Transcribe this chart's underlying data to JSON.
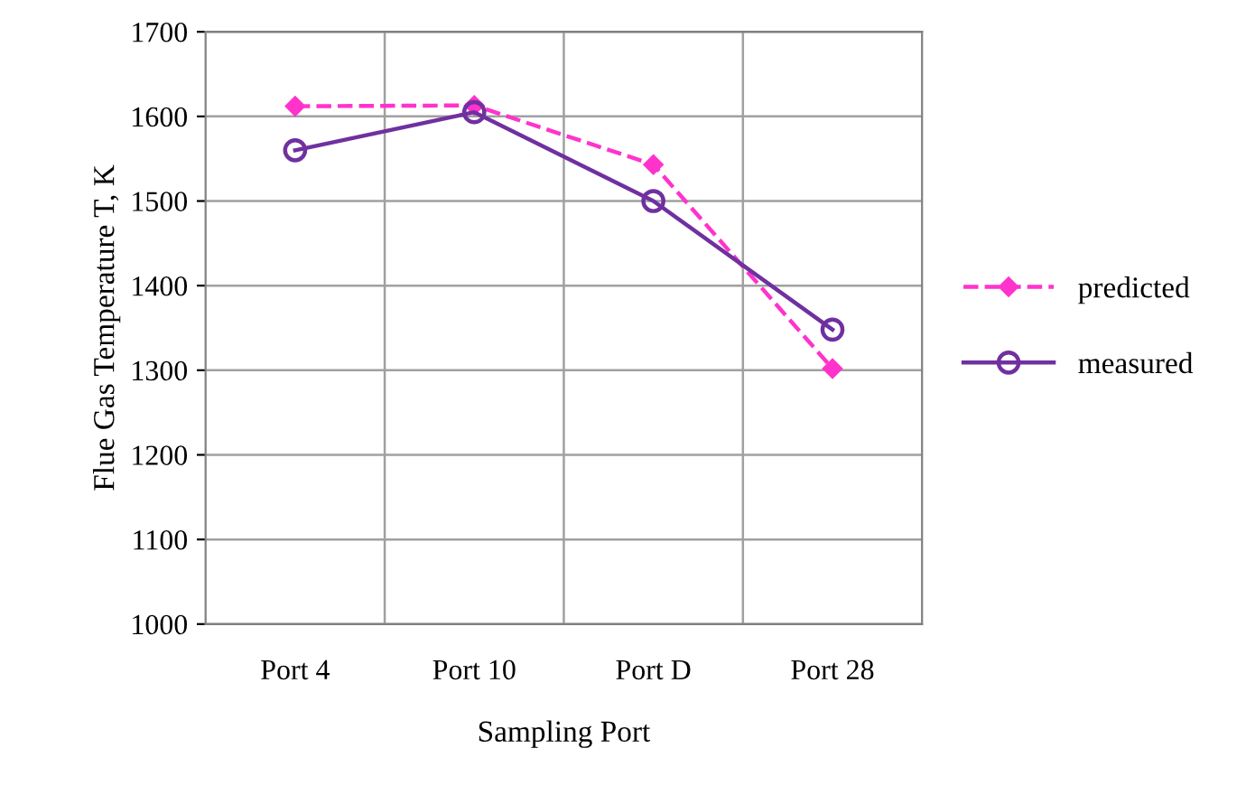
{
  "chart_data": {
    "type": "line",
    "xlabel": "Sampling Port",
    "ylabel": "Flue Gas Temperature T, K",
    "categories": [
      "Port 4",
      "Port 10",
      "Port D",
      "Port 28"
    ],
    "series": [
      {
        "name": "predicted",
        "color": "#ff33cc",
        "values": [
          1612,
          1613,
          1543,
          1302
        ],
        "marker": "diamond",
        "line_style": "dashed"
      },
      {
        "name": "measured",
        "color": "#7030a0",
        "values": [
          1560,
          1605,
          1500,
          1348
        ],
        "marker": "circle",
        "line_style": "solid"
      }
    ],
    "ylim": [
      1000,
      1700
    ],
    "yticks": [
      1000,
      1100,
      1200,
      1300,
      1400,
      1500,
      1600,
      1700
    ],
    "grid": true,
    "legend": "right"
  }
}
